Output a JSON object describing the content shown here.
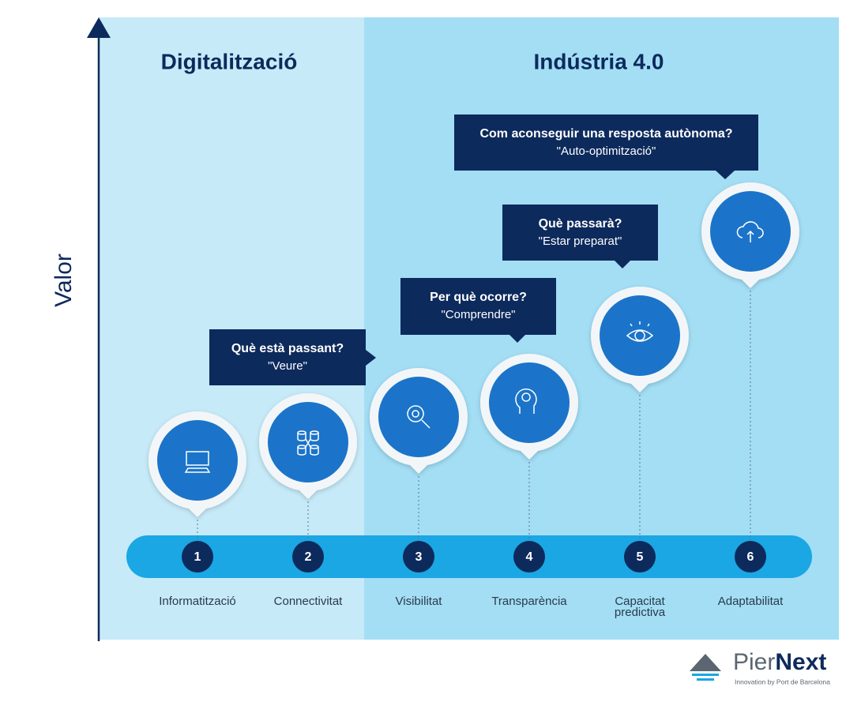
{
  "axis_label": "Valor",
  "sections": [
    {
      "title": "Digitalització"
    },
    {
      "title": "Indústria 4.0"
    }
  ],
  "stages": [
    {
      "number": "1",
      "label": [
        "Informatització"
      ]
    },
    {
      "number": "2",
      "label": [
        "Connectivitat"
      ]
    },
    {
      "number": "3",
      "label": [
        "Visibilitat"
      ]
    },
    {
      "number": "4",
      "label": [
        "Transparència"
      ]
    },
    {
      "number": "5",
      "label": [
        "Capacitat",
        "predictiva"
      ]
    },
    {
      "number": "6",
      "label": [
        "Adaptabilitat"
      ]
    }
  ],
  "callouts": [
    {
      "question": "Què està passant?",
      "answer": "\"Veure\""
    },
    {
      "question": "Per què ocorre?",
      "answer": "\"Comprendre\""
    },
    {
      "question": "Què passarà?",
      "answer": "\"Estar preparat\""
    },
    {
      "question": "Com aconseguir una resposta autònoma?",
      "answer": "\"Auto-optimització\""
    }
  ],
  "logo": {
    "name_light": "Pier",
    "name_bold": "Next",
    "tagline": "Innovation by Port de Barcelona"
  }
}
